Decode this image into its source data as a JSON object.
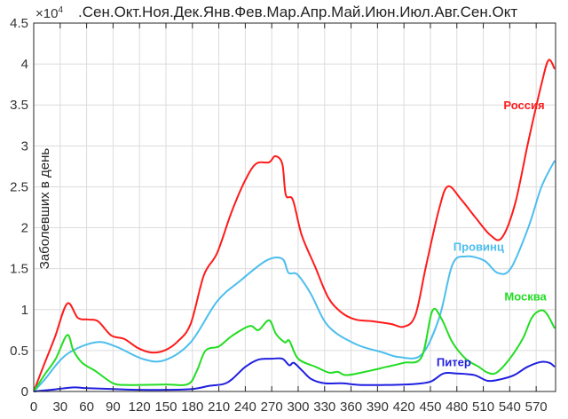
{
  "chart_data": {
    "type": "line",
    "title": ".Сен.Окт.Ноя.Дек.Янв.Фев.Мар.Апр.Май.Июн.Июл.Авг.Сен.Окт",
    "xlabel": "",
    "ylabel": "Заболевших в день",
    "y_exponent_label": "×10",
    "y_exponent_power": "4",
    "xlim": [
      0,
      592
    ],
    "ylim": [
      0,
      45000
    ],
    "grid": true,
    "x_ticks": [
      0,
      30,
      60,
      90,
      120,
      150,
      180,
      210,
      240,
      270,
      300,
      330,
      360,
      390,
      420,
      450,
      480,
      510,
      540,
      570
    ],
    "x_tick_labels": [
      "0",
      "30",
      "60",
      "90",
      "120",
      "150",
      "180",
      "210",
      "240",
      "270",
      "300",
      "330",
      "360",
      "390",
      "420",
      "450",
      "480",
      "510",
      "540",
      "570"
    ],
    "y_ticks": [
      0,
      5000,
      10000,
      15000,
      20000,
      25000,
      30000,
      35000,
      40000,
      45000
    ],
    "y_tick_labels": [
      "0",
      "0.5",
      "1",
      "1.5",
      "2",
      "2.5",
      "3",
      "3.5",
      "4",
      "4.5"
    ],
    "series": [
      {
        "name": "Россия",
        "color": "#ff1a1a",
        "label_at": [
          533,
          34500
        ],
        "x": [
          0,
          12,
          24,
          38,
          50,
          62,
          73,
          88,
          103,
          118,
          133,
          148,
          163,
          178,
          193,
          208,
          224,
          239,
          252,
          267,
          274,
          282,
          286,
          294,
          304,
          319,
          334,
          349,
          365,
          385,
          405,
          420,
          433,
          445,
          460,
          470,
          485,
          501,
          518,
          531,
          546,
          561,
          576,
          584,
          591
        ],
        "y": [
          0,
          3360,
          6620,
          10740,
          9000,
          8790,
          8570,
          6840,
          6400,
          5320,
          4770,
          4990,
          6080,
          8250,
          14200,
          16900,
          21800,
          25600,
          27800,
          28000,
          28750,
          27800,
          24000,
          23400,
          19100,
          15300,
          11500,
          9660,
          8790,
          8570,
          8250,
          7920,
          9330,
          15300,
          22350,
          25060,
          23440,
          21270,
          19100,
          18770,
          22900,
          30500,
          37540,
          40470,
          39390
        ]
      },
      {
        "name": "Провинц",
        "color": "#4dbeee",
        "label_at": [
          476,
          17200
        ],
        "x": [
          0,
          12,
          37,
          70,
          93,
          123,
          148,
          178,
          208,
          234,
          264,
          282,
          289,
          299,
          314,
          334,
          365,
          395,
          415,
          440,
          460,
          475,
          490,
          511,
          526,
          541,
          561,
          576,
          591
        ],
        "y": [
          0,
          1400,
          4500,
          6000,
          5500,
          4000,
          3800,
          6000,
          11000,
          13500,
          16000,
          16200,
          14500,
          14300,
          12000,
          8000,
          5800,
          4800,
          4200,
          4500,
          9000,
          15500,
          16500,
          16000,
          14500,
          15000,
          20000,
          25000,
          28200
        ]
      },
      {
        "name": "Москва",
        "color": "#22dd22",
        "label_at": [
          534,
          11100
        ],
        "x": [
          0,
          12,
          25,
          38,
          45,
          55,
          70,
          90,
          105,
          120,
          150,
          175,
          185,
          195,
          210,
          225,
          245,
          255,
          267,
          275,
          285,
          290,
          300,
          320,
          335,
          345,
          355,
          380,
          400,
          420,
          440,
          452,
          462,
          475,
          490,
          505,
          515,
          525,
          540,
          555,
          565,
          575,
          582,
          591
        ],
        "y": [
          0,
          2000,
          4000,
          6900,
          5000,
          3500,
          2500,
          1000,
          800,
          800,
          850,
          900,
          2500,
          5000,
          5500,
          6800,
          8000,
          7500,
          8700,
          7000,
          6000,
          6200,
          4000,
          3000,
          2300,
          2400,
          2000,
          2500,
          3000,
          3500,
          4200,
          9800,
          9000,
          6000,
          4000,
          3000,
          2300,
          2300,
          4000,
          6500,
          9000,
          9900,
          9500,
          7700
        ]
      },
      {
        "name": "Питер",
        "color": "#1f1fe0",
        "label_at": [
          457,
          3100
        ],
        "x": [
          0,
          20,
          45,
          60,
          90,
          120,
          150,
          180,
          200,
          215,
          225,
          240,
          255,
          270,
          282,
          290,
          295,
          305,
          315,
          330,
          350,
          370,
          400,
          430,
          450,
          465,
          480,
          500,
          515,
          530,
          545,
          560,
          575,
          585,
          591
        ],
        "y": [
          0,
          200,
          500,
          400,
          300,
          200,
          200,
          300,
          700,
          900,
          1500,
          3000,
          3900,
          4000,
          4000,
          3200,
          3500,
          2500,
          1500,
          1000,
          1000,
          800,
          800,
          900,
          1200,
          2200,
          2200,
          2000,
          1300,
          1500,
          2000,
          3000,
          3600,
          3500,
          3000
        ]
      }
    ]
  }
}
